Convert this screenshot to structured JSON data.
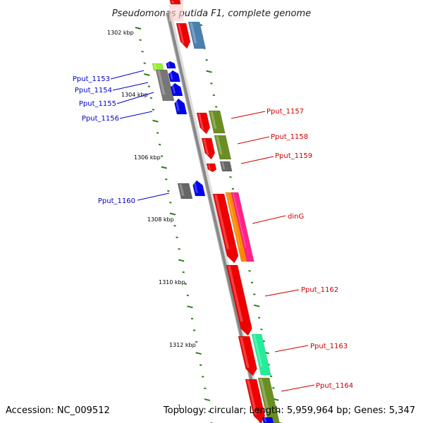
{
  "title": "Pseudomonas putida F1, complete genome",
  "footer": {
    "accession": "Accession: NC_009512",
    "superscript": "1",
    "summary": "Topology: circular; Length: 5,959,964 bp; Genes: 5,347"
  },
  "colors": {
    "backbone": "#888888",
    "tick": "#2e7d1f",
    "left_label": "#0000cc",
    "right_label": "#cc0000"
  },
  "kbp_labels": [
    "1302 kbp",
    "1304 kbp",
    "1306 kbp",
    "1308 kbp",
    "1310 kbp",
    "1312 kbp"
  ],
  "genes_left": [
    {
      "name": "Pput_1153"
    },
    {
      "name": "Pput_1154"
    },
    {
      "name": "Pput_1155"
    },
    {
      "name": "Pput_1156"
    },
    {
      "name": "Pput_1160"
    }
  ],
  "genes_right": [
    {
      "name": "Pput_1157"
    },
    {
      "name": "Pput_1158"
    },
    {
      "name": "Pput_1159"
    },
    {
      "name": "dinG"
    },
    {
      "name": "Pput_1162"
    },
    {
      "name": "Pput_1163"
    },
    {
      "name": "Pput_1164"
    }
  ]
}
